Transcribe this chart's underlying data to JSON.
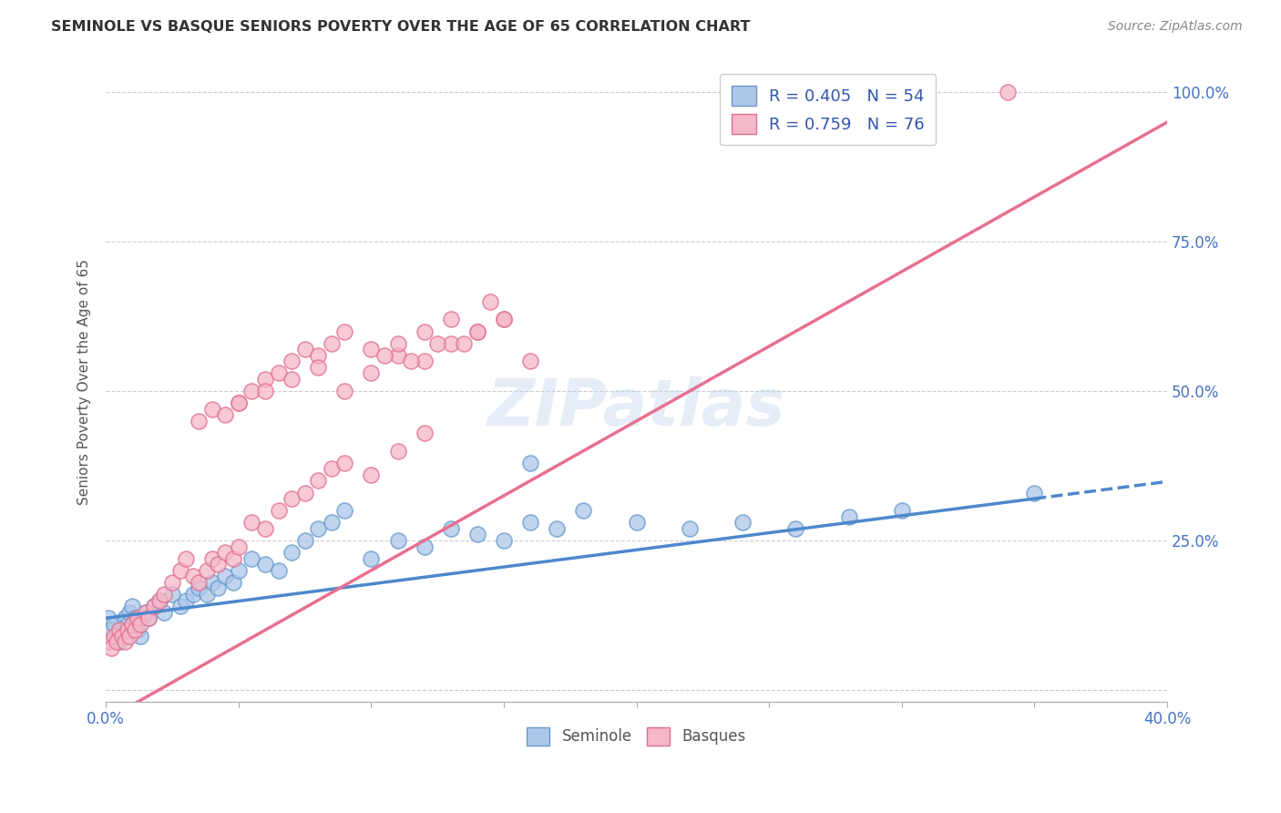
{
  "title": "SEMINOLE VS BASQUE SENIORS POVERTY OVER THE AGE OF 65 CORRELATION CHART",
  "source": "Source: ZipAtlas.com",
  "ylabel": "Seniors Poverty Over the Age of 65",
  "xlim": [
    0.0,
    0.4
  ],
  "ylim": [
    -0.02,
    1.05
  ],
  "xtick_positions": [
    0.0,
    0.05,
    0.1,
    0.15,
    0.2,
    0.25,
    0.3,
    0.35,
    0.4
  ],
  "ytick_positions": [
    0.0,
    0.25,
    0.5,
    0.75,
    1.0
  ],
  "grid_color": "#cccccc",
  "background_color": "#ffffff",
  "seminole_face_color": "#adc6e8",
  "seminole_edge_color": "#6699cc",
  "basque_face_color": "#f5b8c8",
  "basque_edge_color": "#e07090",
  "seminole_line_color": "#4d88cc",
  "basque_line_color": "#e87090",
  "r_color": "#3355aa",
  "seminole_r": 0.405,
  "seminole_n": 54,
  "basque_r": 0.759,
  "basque_n": 76,
  "seminole_x": [
    0.001,
    0.002,
    0.003,
    0.004,
    0.005,
    0.006,
    0.007,
    0.008,
    0.009,
    0.01,
    0.011,
    0.012,
    0.013,
    0.015,
    0.016,
    0.018,
    0.02,
    0.022,
    0.025,
    0.028,
    0.03,
    0.033,
    0.035,
    0.038,
    0.04,
    0.042,
    0.045,
    0.048,
    0.05,
    0.055,
    0.06,
    0.065,
    0.07,
    0.075,
    0.08,
    0.085,
    0.09,
    0.1,
    0.11,
    0.12,
    0.13,
    0.14,
    0.15,
    0.16,
    0.17,
    0.18,
    0.2,
    0.22,
    0.24,
    0.26,
    0.28,
    0.3,
    0.35,
    0.16
  ],
  "seminole_y": [
    0.12,
    0.1,
    0.11,
    0.09,
    0.08,
    0.1,
    0.12,
    0.11,
    0.13,
    0.14,
    0.12,
    0.1,
    0.09,
    0.13,
    0.12,
    0.14,
    0.15,
    0.13,
    0.16,
    0.14,
    0.15,
    0.16,
    0.17,
    0.16,
    0.18,
    0.17,
    0.19,
    0.18,
    0.2,
    0.22,
    0.21,
    0.2,
    0.23,
    0.25,
    0.27,
    0.28,
    0.3,
    0.22,
    0.25,
    0.24,
    0.27,
    0.26,
    0.25,
    0.28,
    0.27,
    0.3,
    0.28,
    0.27,
    0.28,
    0.27,
    0.29,
    0.3,
    0.33,
    0.38
  ],
  "basque_x": [
    0.001,
    0.002,
    0.003,
    0.004,
    0.005,
    0.006,
    0.007,
    0.008,
    0.009,
    0.01,
    0.011,
    0.012,
    0.013,
    0.015,
    0.016,
    0.018,
    0.02,
    0.022,
    0.025,
    0.028,
    0.03,
    0.033,
    0.035,
    0.038,
    0.04,
    0.042,
    0.045,
    0.048,
    0.05,
    0.055,
    0.06,
    0.065,
    0.07,
    0.075,
    0.08,
    0.085,
    0.09,
    0.1,
    0.11,
    0.12,
    0.035,
    0.04,
    0.045,
    0.05,
    0.055,
    0.06,
    0.065,
    0.07,
    0.075,
    0.08,
    0.085,
    0.09,
    0.1,
    0.11,
    0.12,
    0.13,
    0.14,
    0.15,
    0.16,
    0.05,
    0.06,
    0.07,
    0.08,
    0.09,
    0.1,
    0.105,
    0.11,
    0.115,
    0.12,
    0.125,
    0.13,
    0.135,
    0.14,
    0.145,
    0.15,
    0.34
  ],
  "basque_y": [
    0.08,
    0.07,
    0.09,
    0.08,
    0.1,
    0.09,
    0.08,
    0.1,
    0.09,
    0.11,
    0.1,
    0.12,
    0.11,
    0.13,
    0.12,
    0.14,
    0.15,
    0.16,
    0.18,
    0.2,
    0.22,
    0.19,
    0.18,
    0.2,
    0.22,
    0.21,
    0.23,
    0.22,
    0.24,
    0.28,
    0.27,
    0.3,
    0.32,
    0.33,
    0.35,
    0.37,
    0.38,
    0.36,
    0.4,
    0.43,
    0.45,
    0.47,
    0.46,
    0.48,
    0.5,
    0.52,
    0.53,
    0.55,
    0.57,
    0.56,
    0.58,
    0.6,
    0.57,
    0.56,
    0.55,
    0.58,
    0.6,
    0.62,
    0.55,
    0.48,
    0.5,
    0.52,
    0.54,
    0.5,
    0.53,
    0.56,
    0.58,
    0.55,
    0.6,
    0.58,
    0.62,
    0.58,
    0.6,
    0.65,
    0.62,
    1.0
  ]
}
